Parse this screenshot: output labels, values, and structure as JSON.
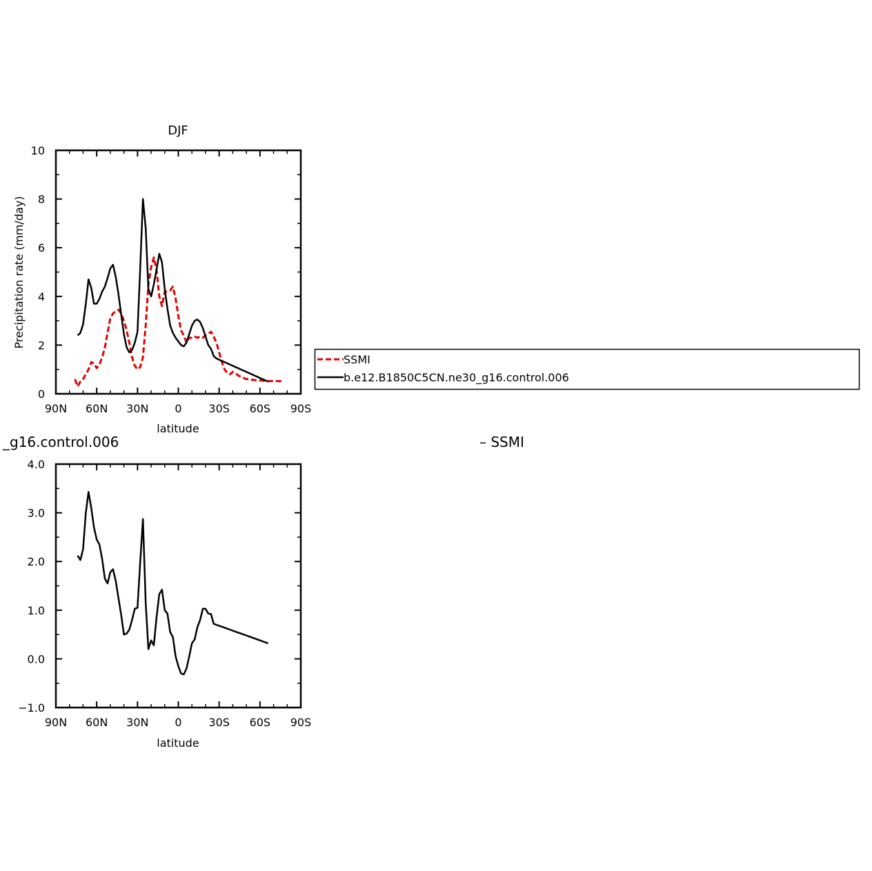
{
  "chart_data": [
    {
      "type": "line",
      "title": "DJF",
      "xlabel": "latitude",
      "ylabel": "Precipitation rate (mm/day)",
      "xlim": [
        90,
        -90
      ],
      "ylim": [
        0,
        10
      ],
      "xticks": [
        90,
        60,
        30,
        0,
        -30,
        -60,
        -90
      ],
      "xtick_labels": [
        "90N",
        "60N",
        "30N",
        "0",
        "30S",
        "60S",
        "90S"
      ],
      "yticks": [
        0,
        2,
        4,
        6,
        8,
        10
      ],
      "ytick_labels": [
        "0",
        "2",
        "4",
        "6",
        "8",
        "10"
      ],
      "legend": {
        "placement": "right"
      },
      "series": [
        {
          "name": "SSMI",
          "color": "#e00000",
          "dash": "dashed",
          "x": [
            76,
            74,
            72,
            70,
            68,
            66,
            64,
            62,
            60,
            58,
            56,
            54,
            52,
            50,
            48,
            46,
            44,
            42,
            40,
            38,
            36,
            34,
            32,
            30,
            28,
            26,
            24,
            22,
            20,
            18,
            16,
            14,
            12,
            10,
            8,
            6,
            4,
            2,
            0,
            -2,
            -4,
            -6,
            -8,
            -10,
            -12,
            -14,
            -16,
            -18,
            -20,
            -22,
            -24,
            -26,
            -28,
            -30,
            -32,
            -34,
            -36,
            -38,
            -40,
            -42,
            -44,
            -46,
            -48,
            -50,
            -52,
            -54,
            -56,
            -58,
            -60,
            -62,
            -64,
            -66,
            -68,
            -70,
            -72,
            -74,
            -76
          ],
          "values": [
            0.6,
            0.3,
            0.5,
            0.6,
            0.8,
            1.0,
            1.3,
            1.25,
            1.05,
            1.2,
            1.5,
            1.9,
            2.5,
            3.1,
            3.3,
            3.4,
            3.45,
            3.3,
            3.0,
            2.6,
            2.1,
            1.5,
            1.15,
            1.0,
            1.1,
            1.5,
            2.8,
            4.5,
            5.2,
            5.6,
            5.1,
            4.0,
            3.6,
            4.2,
            4.2,
            4.25,
            4.4,
            3.9,
            3.2,
            2.6,
            2.4,
            2.1,
            2.3,
            2.3,
            2.35,
            2.3,
            2.35,
            2.3,
            2.4,
            2.45,
            2.55,
            2.35,
            2.1,
            1.7,
            1.3,
            1.0,
            0.85,
            0.8,
            0.9,
            0.85,
            0.75,
            0.7,
            0.65,
            0.6,
            0.6,
            0.58,
            0.56,
            0.55,
            0.55,
            0.54,
            0.53,
            0.52,
            0.52,
            0.52,
            0.52,
            0.52,
            0.52
          ]
        },
        {
          "name": "b.e12.B1850C5CN.ne30_g16.control.006",
          "color": "#000000",
          "dash": "solid",
          "x": [
            74,
            72,
            70,
            68,
            66,
            64,
            62,
            60,
            58,
            56,
            54,
            52,
            50,
            48,
            46,
            44,
            42,
            40,
            38,
            36,
            34,
            32,
            30,
            28,
            26,
            24,
            22,
            20,
            18,
            16,
            14,
            12,
            10,
            8,
            6,
            4,
            2,
            0,
            -2,
            -4,
            -6,
            -8,
            -10,
            -12,
            -14,
            -16,
            -18,
            -20,
            -22,
            -24,
            -26,
            -28,
            -30,
            -32,
            -34,
            -36,
            -38,
            -40,
            -42,
            -44,
            -46,
            -48,
            -50,
            -52,
            -54,
            -56,
            -58,
            -60,
            -62,
            -64,
            -66
          ],
          "values": [
            2.4,
            2.5,
            2.85,
            3.7,
            4.7,
            4.35,
            3.7,
            3.7,
            3.9,
            4.2,
            4.4,
            4.75,
            5.15,
            5.3,
            4.8,
            4.1,
            3.25,
            2.45,
            1.9,
            1.7,
            1.8,
            2.1,
            2.55,
            5.2,
            8.0,
            6.8,
            4.3,
            4.0,
            4.5,
            5.1,
            5.75,
            5.4,
            4.3,
            3.5,
            2.8,
            2.5,
            2.3,
            2.15,
            2.0,
            1.95,
            2.1,
            2.45,
            2.8,
            3.0,
            3.05,
            2.95,
            2.7,
            2.35,
            2.0,
            1.85,
            1.55,
            1.45,
            1.4,
            1.35,
            1.3,
            1.25,
            1.2,
            1.15,
            1.1,
            1.05,
            1.0,
            0.95,
            0.9,
            0.85,
            0.8,
            0.75,
            0.7,
            0.65,
            0.6,
            0.55,
            0.5
          ]
        }
      ]
    },
    {
      "type": "line",
      "title": "_g16.control.006",
      "title_right": "– SSMI",
      "xlabel": "latitude",
      "ylabel": "Precipitation rate (mm/day)",
      "xlim": [
        90,
        -90
      ],
      "ylim": [
        -1,
        4
      ],
      "xticks": [
        90,
        60,
        30,
        0,
        -30,
        -60,
        -90
      ],
      "xtick_labels": [
        "90N",
        "60N",
        "30N",
        "0",
        "30S",
        "60S",
        "90S"
      ],
      "yticks": [
        -1,
        0,
        1,
        2,
        3,
        4
      ],
      "ytick_labels": [
        "−1.0",
        "0.0",
        "1.0",
        "2.0",
        "3.0",
        "4.0"
      ],
      "series": [
        {
          "color": "#000000",
          "dash": "solid",
          "x": [
            74,
            72,
            70,
            68,
            66,
            64,
            62,
            60,
            58,
            56,
            54,
            52,
            50,
            48,
            46,
            44,
            42,
            40,
            38,
            36,
            34,
            32,
            30,
            28,
            26,
            24,
            22,
            20,
            18,
            16,
            14,
            12,
            10,
            8,
            6,
            4,
            2,
            0,
            -2,
            -4,
            -6,
            -8,
            -10,
            -12,
            -14,
            -16,
            -18,
            -20,
            -22,
            -24,
            -26,
            -28,
            -30,
            -32,
            -34,
            -36,
            -38,
            -40,
            -42,
            -44,
            -46,
            -48,
            -50,
            -52,
            -54,
            -56,
            -58,
            -60,
            -62,
            -64,
            -66
          ],
          "values": [
            2.12,
            2.03,
            2.25,
            3.0,
            3.43,
            3.1,
            2.7,
            2.45,
            2.35,
            2.05,
            1.65,
            1.55,
            1.78,
            1.84,
            1.6,
            1.25,
            0.9,
            0.5,
            0.52,
            0.6,
            0.8,
            1.03,
            1.05,
            2.0,
            2.87,
            1.15,
            0.2,
            0.38,
            0.28,
            0.85,
            1.33,
            1.42,
            1.0,
            0.93,
            0.55,
            0.45,
            0.05,
            -0.15,
            -0.3,
            -0.32,
            -0.2,
            0.05,
            0.32,
            0.4,
            0.65,
            0.8,
            1.03,
            1.03,
            0.93,
            0.92,
            0.72,
            0.7,
            0.68,
            0.66,
            0.64,
            0.62,
            0.6,
            0.58,
            0.56,
            0.54,
            0.52,
            0.5,
            0.48,
            0.46,
            0.44,
            0.42,
            0.4,
            0.38,
            0.36,
            0.34,
            0.32
          ]
        }
      ]
    }
  ]
}
